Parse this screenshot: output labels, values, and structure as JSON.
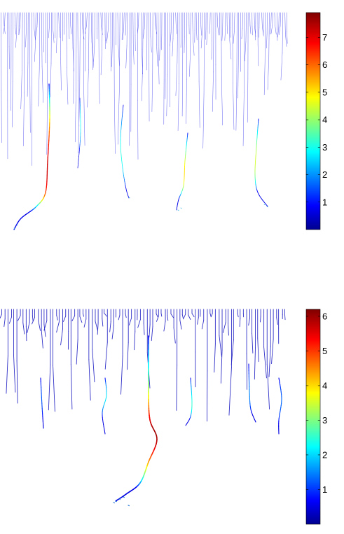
{
  "chart_data": [
    {
      "type": "line",
      "title": "",
      "xlabel": "",
      "ylabel": "",
      "grid": false,
      "colormap": "jet",
      "colorbar": {
        "ticks": [
          "1",
          "2",
          "3",
          "4",
          "5",
          "6",
          "7"
        ],
        "tick_values": [
          1,
          2,
          3,
          4,
          5,
          6,
          7
        ],
        "range": [
          0,
          7.9
        ]
      }
    },
    {
      "type": "line",
      "title": "",
      "xlabel": "",
      "ylabel": "",
      "grid": false,
      "colormap": "jet",
      "colorbar": {
        "ticks": [
          "1",
          "2",
          "3",
          "4",
          "5",
          "6"
        ],
        "tick_values": [
          1,
          2,
          3,
          4,
          5,
          6
        ],
        "range": [
          0,
          6.2
        ]
      }
    }
  ]
}
